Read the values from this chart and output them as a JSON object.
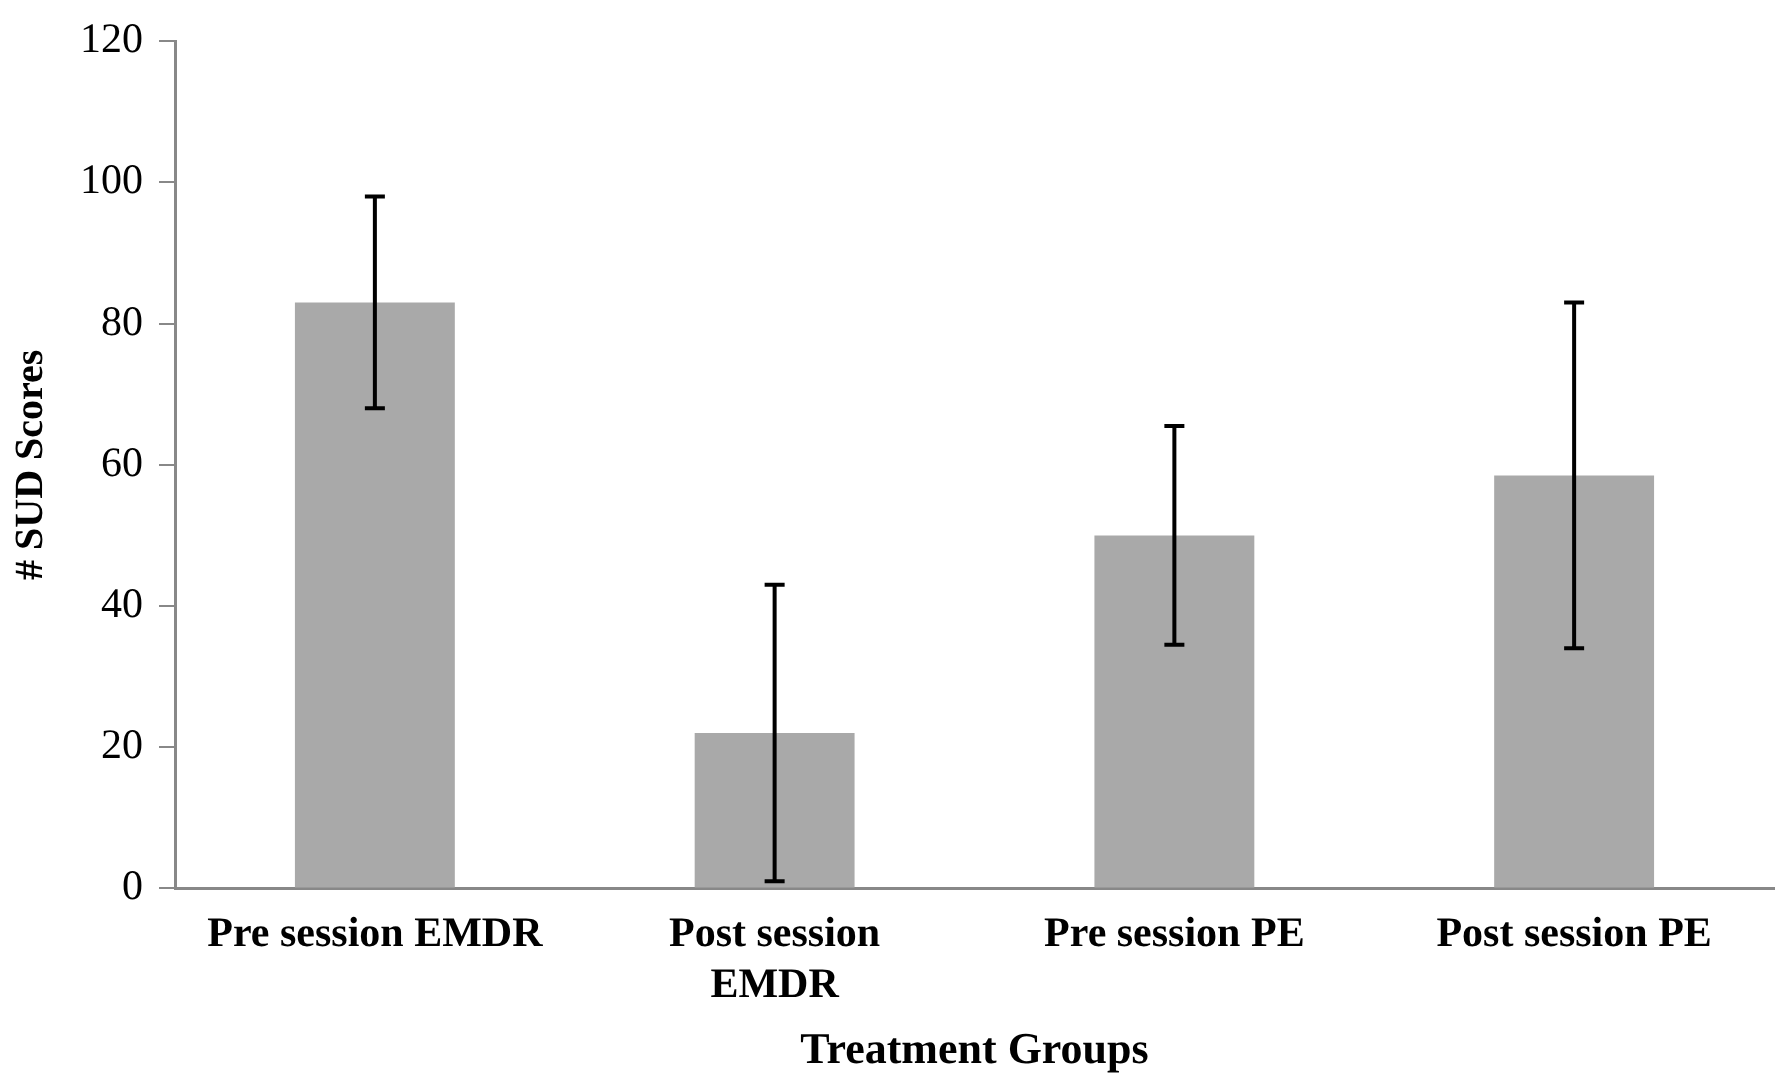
{
  "chart_data": {
    "type": "bar",
    "xlabel": "Treatment Groups",
    "ylabel": "# SUD Scores",
    "categories": [
      "Pre session EMDR",
      "Post session EMDR",
      "Pre session PE",
      "Post session PE"
    ],
    "values": [
      83,
      22,
      50,
      58.5
    ],
    "errors": [
      [
        68,
        98
      ],
      [
        1,
        43
      ],
      [
        34.5,
        65.5
      ],
      [
        34,
        83
      ]
    ],
    "color": "#a9a9a9",
    "ylim": [
      0,
      120
    ],
    "yticks": [
      0,
      20,
      40,
      60,
      80,
      100,
      120
    ],
    "grid": false,
    "legend": false
  }
}
